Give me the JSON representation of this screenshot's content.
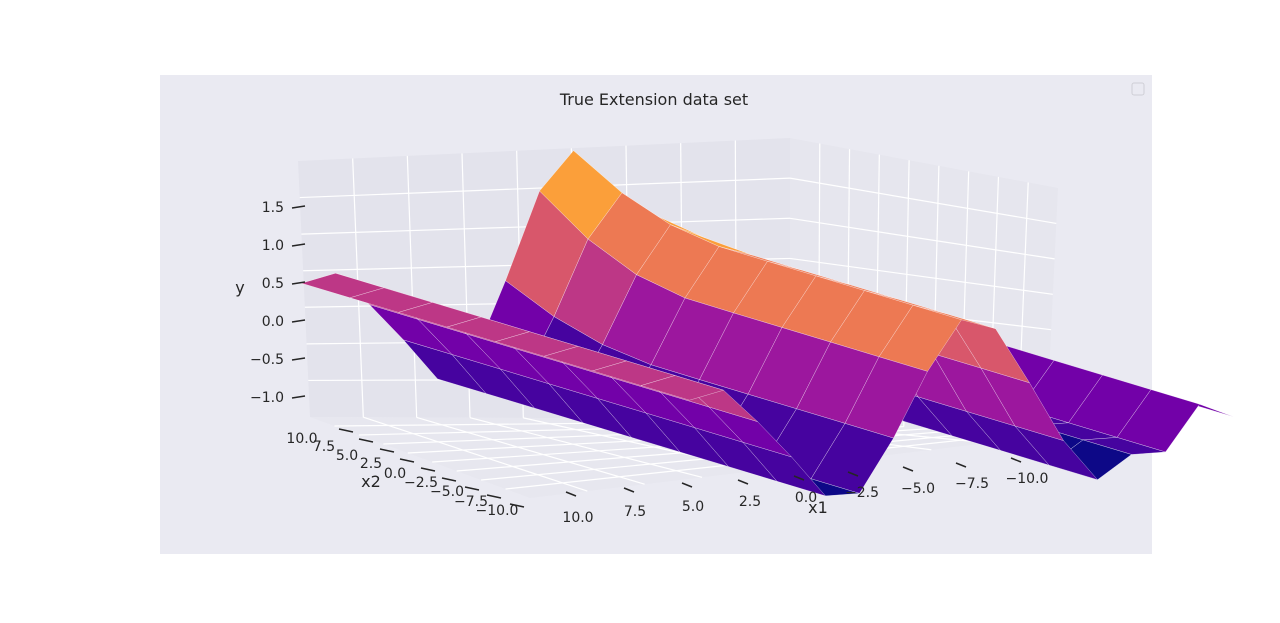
{
  "chart_data": {
    "type": "surface",
    "title": "True Extension data set",
    "xlabel": "x1",
    "ylabel": "x2",
    "zlabel": "y",
    "x_range": [
      -10,
      10
    ],
    "y_range": [
      -10,
      10
    ],
    "z_range": [
      -1.3,
      1.9
    ],
    "x_ticks": [
      "10.0",
      "7.5",
      "5.0",
      "2.5",
      "0.0",
      "−2.5",
      "−5.0",
      "−7.5",
      "−10.0"
    ],
    "y_ticks": [
      "10.0",
      "7.5",
      "5.0",
      "2.5",
      "0.0",
      "−2.5",
      "−5.0",
      "−7.5",
      "−10.0"
    ],
    "z_ticks": [
      "1.5",
      "1.0",
      "0.5",
      "0.0",
      "−0.5",
      "−1.0"
    ],
    "colormap": "plasma",
    "grid": true,
    "legend": "top-right (empty)",
    "panel_background": "#eaeaf2",
    "figure_background": "#ffffff",
    "surface_profile": [
      {
        "x1": -10.0,
        "y": -0.55
      },
      {
        "x1": -8.75,
        "y": -0.35
      },
      {
        "x1": -7.5,
        "y": -0.95
      },
      {
        "x1": -6.25,
        "y": -0.95
      },
      {
        "x1": -5.0,
        "y": -1.25
      },
      {
        "x1": -3.75,
        "y": -0.7
      },
      {
        "x1": -2.5,
        "y": 0.1
      },
      {
        "x1": -1.25,
        "y": 0.85
      },
      {
        "x1": 0.0,
        "y": 1.0
      },
      {
        "x1": 1.25,
        "y": 0.35
      },
      {
        "x1": 2.5,
        "y": -0.5
      },
      {
        "x1": 3.75,
        "y": -1.2
      },
      {
        "x1": 5.0,
        "y": -1.2
      },
      {
        "x1": 6.25,
        "y": -0.65
      },
      {
        "x1": 7.5,
        "y": -0.15
      },
      {
        "x1": 8.75,
        "y": 0.3
      },
      {
        "x1": 10.0,
        "y": 0.2
      }
    ],
    "peak": {
      "x1": 1.0,
      "x2": 9.0,
      "y": 1.85
    }
  }
}
